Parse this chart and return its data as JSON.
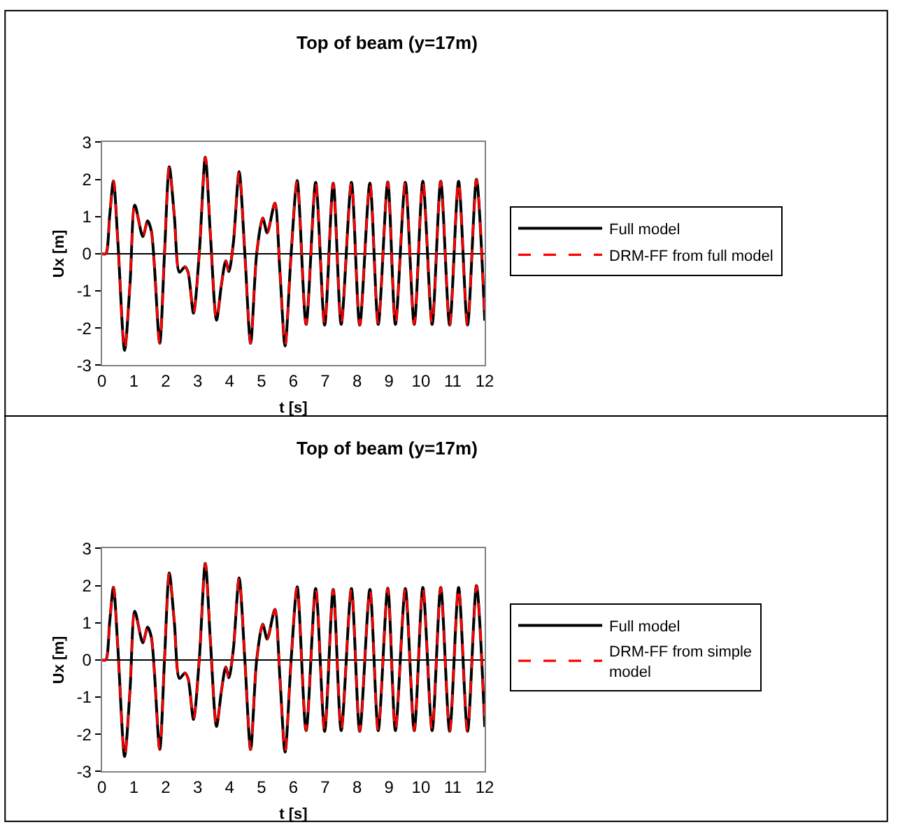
{
  "chart_data": [
    {
      "type": "line",
      "title": "Top of beam (y=17m)",
      "xlabel": "t [s]",
      "ylabel": "Ux [m]",
      "x": [
        0,
        0.12,
        0.24,
        0.36,
        0.5,
        0.71,
        0.88,
        1.03,
        1.28,
        1.43,
        1.55,
        1.81,
        1.96,
        2.11,
        2.27,
        2.43,
        2.6,
        2.7,
        2.87,
        3.05,
        3.24,
        3.4,
        3.59,
        3.75,
        3.88,
        3.98,
        4.12,
        4.3,
        4.48,
        4.66,
        4.85,
        5.04,
        5.18,
        5.42,
        5.58,
        5.74,
        5.93,
        6.12,
        6.4,
        6.7,
        6.98,
        7.25,
        7.5,
        7.82,
        8.08,
        8.4,
        8.66,
        8.96,
        9.2,
        9.51,
        9.79,
        10.06,
        10.35,
        10.62,
        10.9,
        11.18,
        11.46,
        11.74,
        12
      ],
      "series": [
        {
          "name": "Full model",
          "color": "#000000",
          "line_style": "solid",
          "values": [
            0,
            0,
            1.0,
            1.96,
            0.3,
            -2.6,
            -0.8,
            1.31,
            0.46,
            0.88,
            0.6,
            -2.41,
            0,
            2.34,
            1.0,
            -0.5,
            -0.35,
            -0.5,
            -1.6,
            0,
            2.6,
            0.5,
            -1.79,
            -0.8,
            -0.19,
            -0.48,
            0.3,
            2.21,
            0,
            -2.41,
            0,
            0.96,
            0.56,
            1.36,
            -0.5,
            -2.48,
            0,
            1.97,
            -1.9,
            1.92,
            -1.92,
            1.9,
            -1.9,
            1.92,
            -1.92,
            1.9,
            -1.9,
            1.93,
            -1.9,
            1.92,
            -1.9,
            1.95,
            -1.9,
            1.95,
            -1.92,
            1.95,
            -1.92,
            2.0,
            -1.8
          ]
        },
        {
          "name": "DRM-FF from full model",
          "color": "#ff0000",
          "line_style": "dashed",
          "values": [
            0,
            0,
            1.0,
            1.96,
            0.3,
            -2.6,
            -0.8,
            1.31,
            0.46,
            0.88,
            0.6,
            -2.41,
            0,
            2.34,
            1.0,
            -0.5,
            -0.35,
            -0.5,
            -1.6,
            0,
            2.6,
            0.5,
            -1.79,
            -0.8,
            -0.19,
            -0.48,
            0.3,
            2.21,
            0,
            -2.41,
            0,
            0.96,
            0.56,
            1.36,
            -0.5,
            -2.48,
            0,
            1.97,
            -1.9,
            1.92,
            -1.92,
            1.9,
            -1.9,
            1.92,
            -1.92,
            1.9,
            -1.9,
            1.93,
            -1.9,
            1.92,
            -1.9,
            1.95,
            -1.9,
            1.95,
            -1.92,
            1.95,
            -1.92,
            2.0,
            -1.8
          ]
        }
      ],
      "xlim": [
        0,
        12
      ],
      "xticks": [
        0,
        1,
        2,
        3,
        4,
        5,
        6,
        7,
        8,
        9,
        10,
        11,
        12
      ],
      "ylim": [
        -3,
        3
      ],
      "yticks": [
        -3,
        -2,
        -1,
        0,
        1,
        2,
        3
      ],
      "grid": false,
      "legend": "right",
      "marker": "none",
      "ref_lines": [
        {
          "axis": "y",
          "value": 0,
          "color": "#000000"
        }
      ]
    },
    {
      "type": "line",
      "title": "Top of beam (y=17m)",
      "xlabel": "t [s]",
      "ylabel": "Ux [m]",
      "x": [
        0,
        0.12,
        0.24,
        0.36,
        0.5,
        0.71,
        0.88,
        1.03,
        1.28,
        1.43,
        1.55,
        1.81,
        1.96,
        2.11,
        2.27,
        2.43,
        2.6,
        2.7,
        2.87,
        3.05,
        3.24,
        3.4,
        3.59,
        3.75,
        3.88,
        3.98,
        4.12,
        4.3,
        4.48,
        4.66,
        4.85,
        5.04,
        5.18,
        5.42,
        5.58,
        5.74,
        5.93,
        6.12,
        6.4,
        6.7,
        6.98,
        7.25,
        7.5,
        7.82,
        8.08,
        8.4,
        8.66,
        8.96,
        9.2,
        9.51,
        9.79,
        10.06,
        10.35,
        10.62,
        10.9,
        11.18,
        11.46,
        11.74,
        12
      ],
      "series": [
        {
          "name": "Full model",
          "color": "#000000",
          "line_style": "solid",
          "values": [
            0,
            0,
            1.0,
            1.96,
            0.3,
            -2.6,
            -0.8,
            1.31,
            0.46,
            0.88,
            0.6,
            -2.41,
            0,
            2.34,
            1.0,
            -0.5,
            -0.35,
            -0.5,
            -1.6,
            0,
            2.6,
            0.5,
            -1.79,
            -0.8,
            -0.19,
            -0.48,
            0.3,
            2.21,
            0,
            -2.41,
            0,
            0.96,
            0.56,
            1.36,
            -0.5,
            -2.48,
            0,
            1.97,
            -1.9,
            1.92,
            -1.92,
            1.9,
            -1.9,
            1.92,
            -1.92,
            1.9,
            -1.9,
            1.93,
            -1.9,
            1.92,
            -1.9,
            1.95,
            -1.9,
            1.95,
            -1.92,
            1.95,
            -1.92,
            2.0,
            -1.8
          ]
        },
        {
          "name": "DRM-FF from simple model",
          "color": "#ff0000",
          "line_style": "dashed",
          "values": [
            0,
            0,
            1.0,
            1.96,
            0.3,
            -2.6,
            -0.8,
            1.31,
            0.46,
            0.88,
            0.6,
            -2.41,
            0,
            2.34,
            1.0,
            -0.5,
            -0.35,
            -0.5,
            -1.6,
            0,
            2.6,
            0.5,
            -1.79,
            -0.8,
            -0.19,
            -0.48,
            0.3,
            2.21,
            0,
            -2.41,
            0,
            0.96,
            0.56,
            1.36,
            -0.5,
            -2.48,
            0,
            1.97,
            -1.9,
            1.92,
            -1.92,
            1.9,
            -1.9,
            1.92,
            -1.92,
            1.9,
            -1.9,
            1.93,
            -1.9,
            1.92,
            -1.9,
            1.95,
            -1.9,
            1.95,
            -1.92,
            1.95,
            -1.92,
            2.0,
            -1.8
          ]
        }
      ],
      "xlim": [
        0,
        12
      ],
      "xticks": [
        0,
        1,
        2,
        3,
        4,
        5,
        6,
        7,
        8,
        9,
        10,
        11,
        12
      ],
      "ylim": [
        -3,
        3
      ],
      "yticks": [
        -3,
        -2,
        -1,
        0,
        1,
        2,
        3
      ],
      "grid": false,
      "legend": "right",
      "marker": "none",
      "ref_lines": [
        {
          "axis": "y",
          "value": 0,
          "color": "#000000"
        }
      ]
    }
  ]
}
